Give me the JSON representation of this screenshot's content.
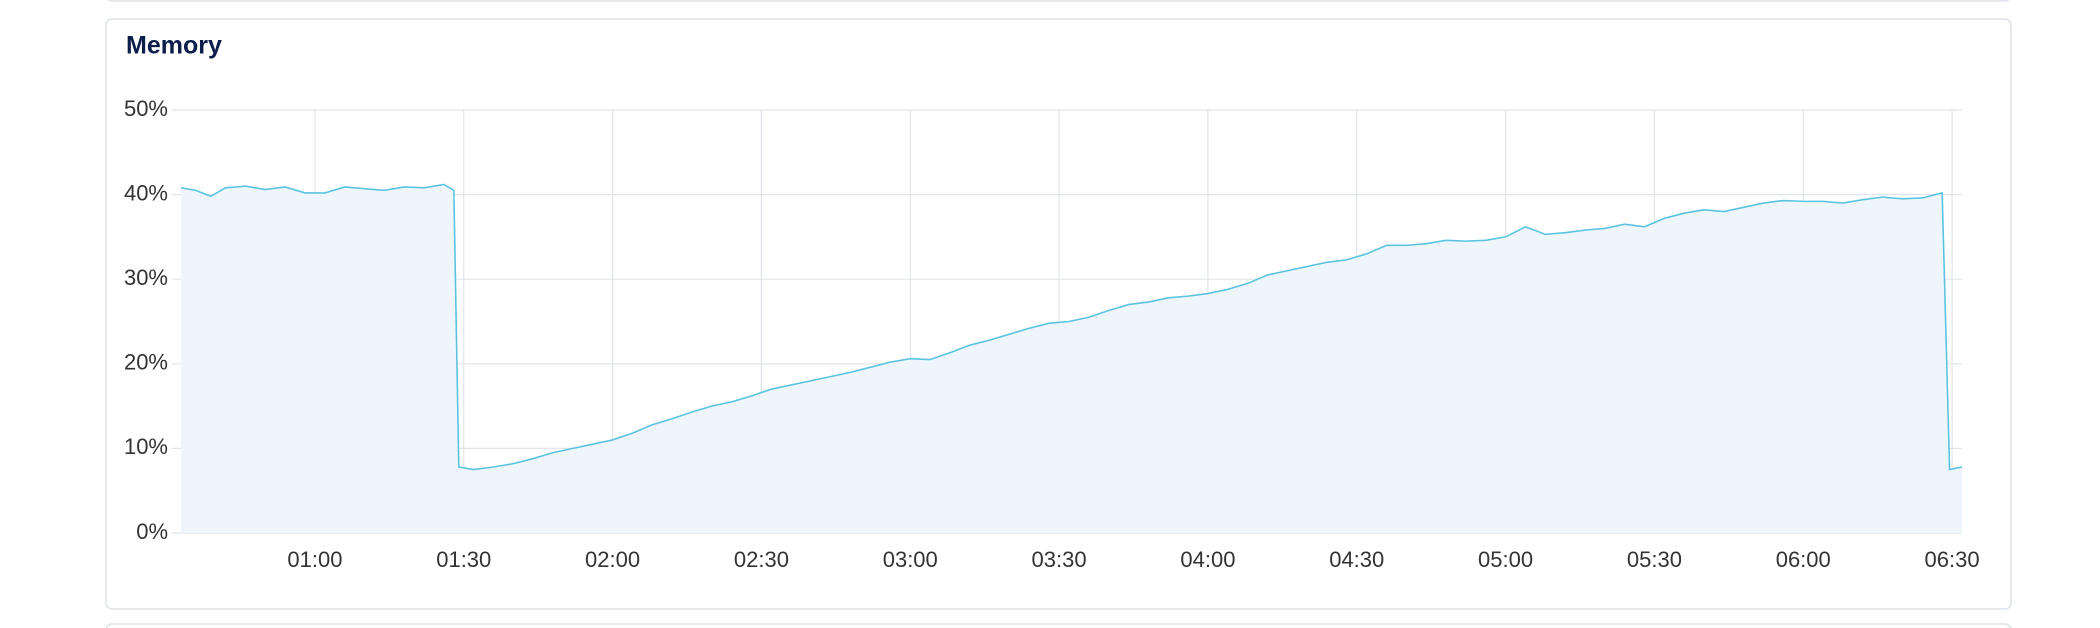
{
  "chart_data": {
    "type": "area",
    "title": "Memory",
    "color": "#5bc3e0",
    "fill": "#eef6fc",
    "grid": true,
    "x": [
      33,
      36,
      39,
      42,
      46,
      50,
      54,
      58,
      62,
      66,
      70,
      74,
      78,
      82,
      86,
      88,
      89,
      92,
      96,
      100,
      104,
      108,
      112,
      116,
      120,
      124,
      128,
      132,
      136,
      140,
      144,
      148,
      152,
      156,
      160,
      164,
      168,
      172,
      176,
      180,
      184,
      188,
      192,
      196,
      200,
      204,
      208,
      212,
      216,
      220,
      224,
      228,
      232,
      236,
      240,
      244,
      248,
      252,
      256,
      260,
      264,
      268,
      272,
      276,
      280,
      284,
      288,
      292,
      296,
      300,
      304,
      308,
      312,
      316,
      320,
      324,
      328,
      332,
      336,
      340,
      344,
      348,
      352,
      356,
      360,
      364,
      368,
      372,
      376,
      380,
      384,
      388,
      389.5,
      392
    ],
    "values": [
      40.8,
      40.5,
      39.8,
      40.8,
      41,
      40.6,
      40.9,
      40.2,
      40.2,
      40.9,
      40.7,
      40.5,
      40.9,
      40.8,
      41.2,
      40.5,
      7.8,
      7.5,
      7.8,
      8.2,
      8.8,
      9.5,
      10,
      10.5,
      11,
      11.8,
      12.8,
      13.5,
      14.3,
      15,
      15.5,
      16.2,
      17,
      17.5,
      18,
      18.5,
      19,
      19.6,
      20.2,
      20.6,
      20.5,
      21.3,
      22.2,
      22.8,
      23.5,
      24.2,
      24.8,
      25,
      25.5,
      26.3,
      27,
      27.3,
      27.8,
      28,
      28.3,
      28.8,
      29.5,
      30.5,
      31,
      31.5,
      32,
      32.3,
      33,
      34,
      34,
      34.2,
      34.6,
      34.5,
      34.6,
      35,
      36.2,
      35.3,
      35.5,
      35.8,
      36,
      36.5,
      36.2,
      37.2,
      37.8,
      38.2,
      38,
      38.5,
      39,
      39.3,
      39.2,
      39.2,
      39,
      39.4,
      39.7,
      39.5,
      39.6,
      40.2,
      7.5,
      7.8
    ],
    "xlim": [
      32.4,
      392
    ],
    "xticks": [
      {
        "value": 60,
        "label": "01:00"
      },
      {
        "value": 90,
        "label": "01:30"
      },
      {
        "value": 120,
        "label": "02:00"
      },
      {
        "value": 150,
        "label": "02:30"
      },
      {
        "value": 180,
        "label": "03:00"
      },
      {
        "value": 210,
        "label": "03:30"
      },
      {
        "value": 240,
        "label": "04:00"
      },
      {
        "value": 270,
        "label": "04:30"
      },
      {
        "value": 300,
        "label": "05:00"
      },
      {
        "value": 330,
        "label": "05:30"
      },
      {
        "value": 360,
        "label": "06:00"
      },
      {
        "value": 390,
        "label": "06:30"
      }
    ],
    "ylim": [
      0,
      50
    ],
    "yticks": [
      {
        "value": 0,
        "label": "0%"
      },
      {
        "value": 10,
        "label": "10%"
      },
      {
        "value": 20,
        "label": "20%"
      },
      {
        "value": 30,
        "label": "30%"
      },
      {
        "value": 40,
        "label": "40%"
      },
      {
        "value": 50,
        "label": "50%"
      }
    ]
  }
}
